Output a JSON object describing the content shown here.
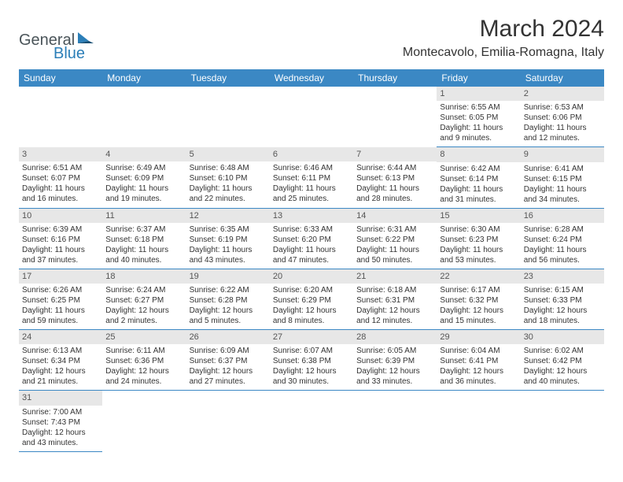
{
  "logo": {
    "general": "General",
    "blue": "Blue"
  },
  "title": "March 2024",
  "location": "Montecavolo, Emilia-Romagna, Italy",
  "colors": {
    "header_bg": "#3b88c4",
    "header_text": "#ffffff",
    "daynum_bg": "#e7e7e7",
    "cell_border": "#3b88c4",
    "logo_gray": "#4a5459",
    "logo_blue": "#2c7fb8"
  },
  "weekdays": [
    "Sunday",
    "Monday",
    "Tuesday",
    "Wednesday",
    "Thursday",
    "Friday",
    "Saturday"
  ],
  "weeks": [
    [
      null,
      null,
      null,
      null,
      null,
      {
        "d": "1",
        "sr": "6:55 AM",
        "ss": "6:05 PM",
        "dl": "11 hours and 9 minutes."
      },
      {
        "d": "2",
        "sr": "6:53 AM",
        "ss": "6:06 PM",
        "dl": "11 hours and 12 minutes."
      }
    ],
    [
      {
        "d": "3",
        "sr": "6:51 AM",
        "ss": "6:07 PM",
        "dl": "11 hours and 16 minutes."
      },
      {
        "d": "4",
        "sr": "6:49 AM",
        "ss": "6:09 PM",
        "dl": "11 hours and 19 minutes."
      },
      {
        "d": "5",
        "sr": "6:48 AM",
        "ss": "6:10 PM",
        "dl": "11 hours and 22 minutes."
      },
      {
        "d": "6",
        "sr": "6:46 AM",
        "ss": "6:11 PM",
        "dl": "11 hours and 25 minutes."
      },
      {
        "d": "7",
        "sr": "6:44 AM",
        "ss": "6:13 PM",
        "dl": "11 hours and 28 minutes."
      },
      {
        "d": "8",
        "sr": "6:42 AM",
        "ss": "6:14 PM",
        "dl": "11 hours and 31 minutes."
      },
      {
        "d": "9",
        "sr": "6:41 AM",
        "ss": "6:15 PM",
        "dl": "11 hours and 34 minutes."
      }
    ],
    [
      {
        "d": "10",
        "sr": "6:39 AM",
        "ss": "6:16 PM",
        "dl": "11 hours and 37 minutes."
      },
      {
        "d": "11",
        "sr": "6:37 AM",
        "ss": "6:18 PM",
        "dl": "11 hours and 40 minutes."
      },
      {
        "d": "12",
        "sr": "6:35 AM",
        "ss": "6:19 PM",
        "dl": "11 hours and 43 minutes."
      },
      {
        "d": "13",
        "sr": "6:33 AM",
        "ss": "6:20 PM",
        "dl": "11 hours and 47 minutes."
      },
      {
        "d": "14",
        "sr": "6:31 AM",
        "ss": "6:22 PM",
        "dl": "11 hours and 50 minutes."
      },
      {
        "d": "15",
        "sr": "6:30 AM",
        "ss": "6:23 PM",
        "dl": "11 hours and 53 minutes."
      },
      {
        "d": "16",
        "sr": "6:28 AM",
        "ss": "6:24 PM",
        "dl": "11 hours and 56 minutes."
      }
    ],
    [
      {
        "d": "17",
        "sr": "6:26 AM",
        "ss": "6:25 PM",
        "dl": "11 hours and 59 minutes."
      },
      {
        "d": "18",
        "sr": "6:24 AM",
        "ss": "6:27 PM",
        "dl": "12 hours and 2 minutes."
      },
      {
        "d": "19",
        "sr": "6:22 AM",
        "ss": "6:28 PM",
        "dl": "12 hours and 5 minutes."
      },
      {
        "d": "20",
        "sr": "6:20 AM",
        "ss": "6:29 PM",
        "dl": "12 hours and 8 minutes."
      },
      {
        "d": "21",
        "sr": "6:18 AM",
        "ss": "6:31 PM",
        "dl": "12 hours and 12 minutes."
      },
      {
        "d": "22",
        "sr": "6:17 AM",
        "ss": "6:32 PM",
        "dl": "12 hours and 15 minutes."
      },
      {
        "d": "23",
        "sr": "6:15 AM",
        "ss": "6:33 PM",
        "dl": "12 hours and 18 minutes."
      }
    ],
    [
      {
        "d": "24",
        "sr": "6:13 AM",
        "ss": "6:34 PM",
        "dl": "12 hours and 21 minutes."
      },
      {
        "d": "25",
        "sr": "6:11 AM",
        "ss": "6:36 PM",
        "dl": "12 hours and 24 minutes."
      },
      {
        "d": "26",
        "sr": "6:09 AM",
        "ss": "6:37 PM",
        "dl": "12 hours and 27 minutes."
      },
      {
        "d": "27",
        "sr": "6:07 AM",
        "ss": "6:38 PM",
        "dl": "12 hours and 30 minutes."
      },
      {
        "d": "28",
        "sr": "6:05 AM",
        "ss": "6:39 PM",
        "dl": "12 hours and 33 minutes."
      },
      {
        "d": "29",
        "sr": "6:04 AM",
        "ss": "6:41 PM",
        "dl": "12 hours and 36 minutes."
      },
      {
        "d": "30",
        "sr": "6:02 AM",
        "ss": "6:42 PM",
        "dl": "12 hours and 40 minutes."
      }
    ],
    [
      {
        "d": "31",
        "sr": "7:00 AM",
        "ss": "7:43 PM",
        "dl": "12 hours and 43 minutes."
      },
      null,
      null,
      null,
      null,
      null,
      null
    ]
  ],
  "labels": {
    "sunrise": "Sunrise:",
    "sunset": "Sunset:",
    "daylight": "Daylight:"
  }
}
